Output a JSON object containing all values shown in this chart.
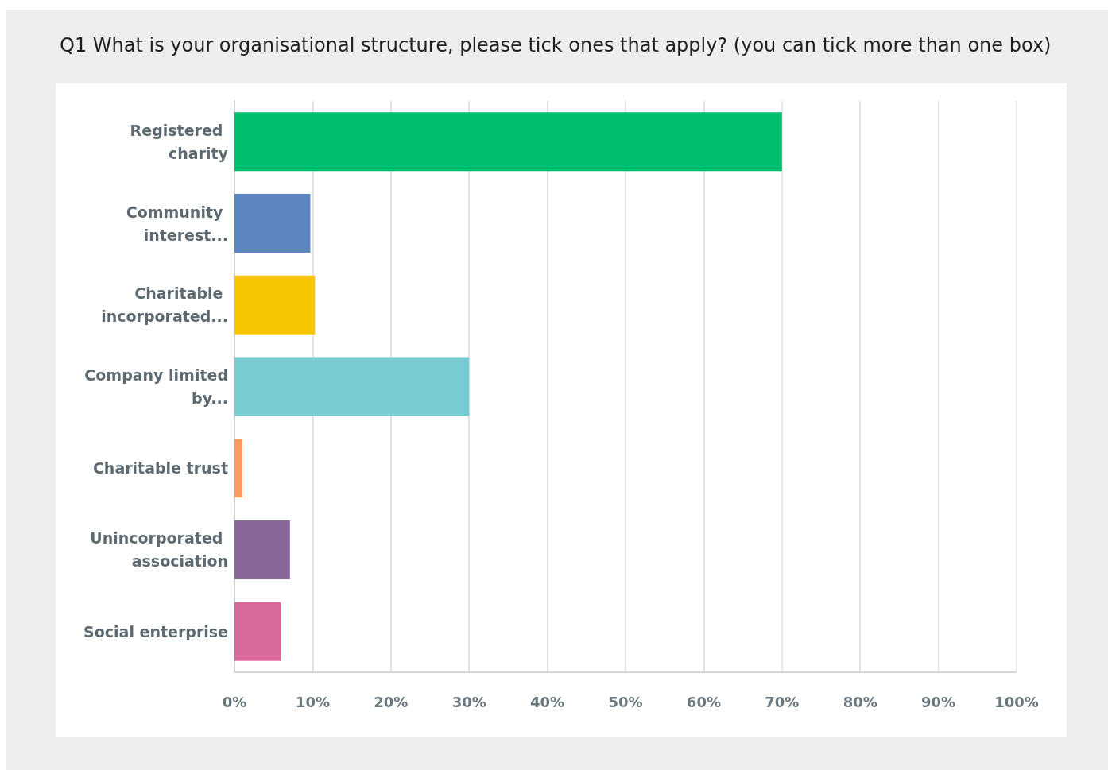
{
  "chart_data": {
    "type": "bar",
    "orientation": "horizontal",
    "title": "Q1 What is your organisational structure, please tick ones that apply? (you can tick more than one box)",
    "categories": [
      "Registered charity",
      "Community interest...",
      "Charitable incorporated...",
      "Company limited by...",
      "Charitable trust",
      "Unincorporated association",
      "Social enterprise"
    ],
    "values": [
      70,
      9.7,
      10.3,
      30,
      1,
      7.1,
      5.9
    ],
    "colors": [
      "#00bf6f",
      "#5b86c0",
      "#f7c600",
      "#77ccd1",
      "#ff9a5c",
      "#88679a",
      "#d9699a"
    ],
    "xlim": [
      0,
      100
    ],
    "xticks": [
      {
        "value": 0,
        "label": "0%"
      },
      {
        "value": 10,
        "label": "10%"
      },
      {
        "value": 20,
        "label": "20%"
      },
      {
        "value": 30,
        "label": "30%"
      },
      {
        "value": 40,
        "label": "40%"
      },
      {
        "value": 50,
        "label": "50%"
      },
      {
        "value": 60,
        "label": "60%"
      },
      {
        "value": 70,
        "label": "70%"
      },
      {
        "value": 80,
        "label": "80%"
      },
      {
        "value": 90,
        "label": "90%"
      },
      {
        "value": 100,
        "label": "100%"
      }
    ],
    "grid": "x"
  }
}
